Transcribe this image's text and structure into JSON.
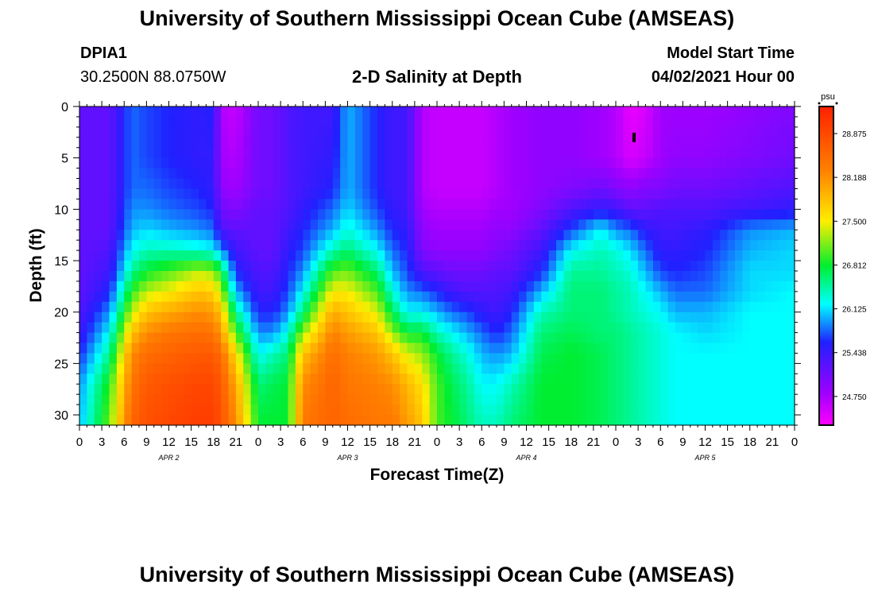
{
  "header": {
    "title": "University of Southern Mississippi Ocean Cube (AMSEAS)",
    "footer_title": "University of Southern Mississippi Ocean Cube (AMSEAS)",
    "station_id": "DPIA1",
    "station_coords": "30.2500N  88.0750W",
    "plot_title": "2-D Salinity at Depth",
    "model_start_label": "Model Start Time",
    "model_start_value": "04/02/2021 Hour 00"
  },
  "chart_data": {
    "type": "heatmap",
    "title": "2-D Salinity at Depth",
    "xlabel": "Forecast Time(Z)",
    "ylabel": "Depth (ft)",
    "x_tick_labels": [
      "0",
      "3",
      "6",
      "9",
      "12",
      "15",
      "18",
      "21",
      "0",
      "3",
      "6",
      "9",
      "12",
      "15",
      "18",
      "21",
      "0",
      "3",
      "6",
      "9",
      "12",
      "15",
      "18",
      "21",
      "0",
      "3",
      "6",
      "9",
      "12",
      "15",
      "18",
      "21",
      "0"
    ],
    "x_range_hours": [
      0,
      96
    ],
    "day_labels": [
      {
        "label": "APR  2",
        "hour": 12
      },
      {
        "label": "APR  3",
        "hour": 36
      },
      {
        "label": "APR  4",
        "hour": 60
      },
      {
        "label": "APR  5",
        "hour": 84
      }
    ],
    "y_ticks": [
      0,
      5,
      10,
      15,
      20,
      25,
      30
    ],
    "ylim": [
      0,
      31
    ],
    "y_inverted": true,
    "colorbar": {
      "unit": "psu",
      "ticks": [
        "28.875",
        "28.188",
        "27.500",
        "26.812",
        "26.125",
        "25.438",
        "24.750"
      ],
      "range": [
        24.3,
        29.3
      ]
    },
    "colors": {
      "magenta": "#ff00ff",
      "purple": "#a000ff",
      "blue": "#2020ff",
      "cyan": "#00ffff",
      "green": "#00ee30",
      "yellow": "#ffee00",
      "orange": "#ff8000",
      "red": "#ff2000"
    },
    "salinity_profiles": {
      "depths_ft": [
        0,
        5,
        8,
        10,
        12,
        14,
        16,
        18,
        20,
        22,
        24,
        27,
        31
      ],
      "times_h": [
        0,
        4,
        7,
        9,
        12,
        16,
        18,
        19,
        21,
        24,
        26,
        28,
        30,
        34,
        36,
        40,
        42,
        44,
        46,
        48,
        50,
        52,
        54,
        56,
        58,
        62,
        66,
        70,
        72,
        74,
        76,
        78,
        80,
        84,
        90,
        96
      ],
      "values": [
        [
          25.2,
          25.2,
          25.2,
          25.2,
          25.2,
          25.2,
          25.2,
          25.2,
          25.3,
          25.4,
          25.6,
          25.9,
          26.0
        ],
        [
          25.2,
          25.2,
          25.2,
          25.2,
          25.2,
          25.3,
          25.4,
          25.6,
          25.9,
          26.2,
          26.5,
          26.9,
          27.1
        ],
        [
          25.8,
          25.8,
          25.8,
          25.9,
          26.0,
          26.2,
          26.5,
          26.9,
          27.3,
          27.8,
          28.2,
          28.4,
          28.6
        ],
        [
          25.7,
          25.7,
          25.8,
          25.9,
          26.1,
          26.4,
          26.8,
          27.3,
          27.8,
          28.2,
          28.5,
          28.7,
          28.8
        ],
        [
          25.6,
          25.6,
          25.7,
          25.8,
          26.0,
          26.4,
          27.0,
          27.5,
          28.0,
          28.4,
          28.6,
          28.8,
          28.9
        ],
        [
          25.5,
          25.5,
          25.6,
          25.7,
          25.9,
          26.3,
          27.3,
          27.8,
          28.2,
          28.5,
          28.7,
          28.9,
          29.0
        ],
        [
          25.6,
          25.5,
          25.5,
          25.6,
          25.8,
          26.2,
          27.2,
          27.7,
          28.1,
          28.4,
          28.7,
          28.9,
          29.0
        ],
        [
          24.7,
          24.8,
          24.9,
          25.1,
          25.3,
          25.9,
          26.8,
          27.3,
          27.8,
          28.1,
          28.5,
          28.7,
          28.8
        ],
        [
          24.6,
          24.7,
          24.8,
          25.0,
          25.2,
          25.4,
          25.6,
          26.0,
          26.5,
          27.0,
          27.6,
          28.0,
          28.2
        ],
        [
          25.1,
          25.1,
          25.1,
          25.2,
          25.2,
          25.2,
          25.3,
          25.4,
          25.6,
          25.9,
          26.2,
          26.6,
          26.8
        ],
        [
          25.1,
          25.1,
          25.1,
          25.2,
          25.2,
          25.2,
          25.3,
          25.4,
          25.6,
          25.9,
          26.4,
          26.7,
          26.8
        ],
        [
          25.3,
          25.3,
          25.3,
          25.3,
          25.4,
          25.5,
          25.6,
          25.7,
          25.9,
          26.3,
          26.6,
          26.8,
          26.8
        ],
        [
          25.4,
          25.4,
          25.4,
          25.5,
          25.6,
          25.7,
          25.9,
          26.2,
          26.6,
          27.2,
          27.8,
          28.2,
          28.4
        ],
        [
          25.4,
          25.5,
          25.6,
          25.8,
          26.0,
          26.4,
          27.0,
          27.5,
          28.0,
          28.3,
          28.5,
          28.6,
          28.6
        ],
        [
          26.0,
          26.0,
          26.0,
          26.1,
          26.3,
          26.6,
          27.1,
          27.5,
          27.8,
          28.1,
          28.3,
          28.4,
          28.5
        ],
        [
          25.6,
          25.6,
          25.6,
          25.7,
          25.9,
          26.2,
          26.6,
          27.0,
          27.4,
          27.8,
          28.1,
          28.3,
          28.4
        ],
        [
          25.4,
          25.4,
          25.4,
          25.5,
          25.6,
          25.8,
          26.0,
          26.3,
          26.7,
          27.2,
          27.8,
          28.2,
          28.4
        ],
        [
          25.4,
          25.4,
          25.4,
          25.4,
          25.5,
          25.6,
          25.7,
          25.9,
          26.2,
          26.8,
          27.4,
          27.9,
          28.1
        ],
        [
          24.7,
          24.7,
          24.7,
          24.8,
          24.9,
          25.0,
          25.3,
          25.8,
          26.2,
          26.8,
          27.2,
          27.6,
          27.8
        ],
        [
          24.6,
          24.6,
          24.6,
          24.7,
          24.8,
          24.9,
          25.2,
          25.6,
          26.0,
          26.4,
          26.8,
          27.0,
          27.0
        ],
        [
          24.6,
          24.6,
          24.6,
          24.7,
          24.8,
          24.9,
          25.1,
          25.4,
          25.8,
          26.2,
          26.5,
          26.7,
          26.8
        ],
        [
          24.6,
          24.6,
          24.6,
          24.7,
          24.8,
          24.9,
          25.1,
          25.3,
          25.7,
          26.0,
          26.3,
          26.5,
          26.6
        ],
        [
          24.6,
          24.6,
          24.6,
          24.7,
          24.8,
          24.9,
          25.1,
          25.3,
          25.5,
          25.8,
          26.0,
          26.2,
          26.4
        ],
        [
          24.7,
          24.7,
          24.7,
          24.8,
          24.9,
          25.0,
          25.2,
          25.3,
          25.4,
          25.6,
          25.9,
          26.2,
          26.4
        ],
        [
          24.8,
          24.8,
          24.8,
          24.8,
          24.9,
          25.1,
          25.2,
          25.4,
          25.6,
          25.8,
          26.0,
          26.4,
          26.6
        ],
        [
          24.9,
          24.9,
          24.9,
          25.0,
          25.2,
          25.4,
          25.6,
          26.0,
          26.4,
          26.6,
          26.7,
          26.8,
          26.8
        ],
        [
          24.9,
          24.9,
          25.0,
          25.3,
          25.7,
          26.2,
          26.5,
          26.6,
          26.6,
          26.7,
          26.8,
          26.8,
          26.8
        ],
        [
          24.8,
          24.8,
          25.1,
          25.5,
          26.2,
          26.4,
          26.5,
          26.6,
          26.6,
          26.6,
          26.7,
          26.7,
          26.7
        ],
        [
          24.7,
          24.7,
          25.0,
          25.4,
          25.9,
          26.3,
          26.4,
          26.5,
          26.5,
          26.6,
          26.6,
          26.6,
          26.6
        ],
        [
          24.4,
          24.5,
          24.9,
          25.2,
          25.8,
          26.1,
          26.3,
          26.4,
          26.4,
          26.5,
          26.5,
          26.5,
          26.5
        ],
        [
          24.5,
          24.6,
          25.0,
          25.2,
          25.5,
          25.8,
          26.0,
          26.2,
          26.3,
          26.4,
          26.4,
          26.4,
          26.4
        ],
        [
          24.8,
          24.8,
          25.0,
          25.3,
          25.4,
          25.5,
          25.7,
          26.0,
          26.2,
          26.3,
          26.3,
          26.3,
          26.3
        ],
        [
          24.8,
          24.9,
          25.1,
          25.3,
          25.4,
          25.5,
          25.6,
          25.8,
          26.0,
          26.2,
          26.2,
          26.2,
          26.2
        ],
        [
          24.8,
          24.9,
          25.1,
          25.3,
          25.5,
          25.6,
          25.7,
          25.8,
          26.0,
          26.1,
          26.2,
          26.2,
          26.2
        ],
        [
          24.9,
          25.0,
          25.2,
          25.4,
          25.9,
          26.0,
          26.1,
          26.1,
          26.2,
          26.2,
          26.2,
          26.2,
          26.2
        ],
        [
          25.0,
          25.1,
          25.3,
          25.5,
          26.0,
          26.1,
          26.1,
          26.2,
          26.2,
          26.2,
          26.2,
          26.2,
          26.2
        ]
      ]
    }
  }
}
